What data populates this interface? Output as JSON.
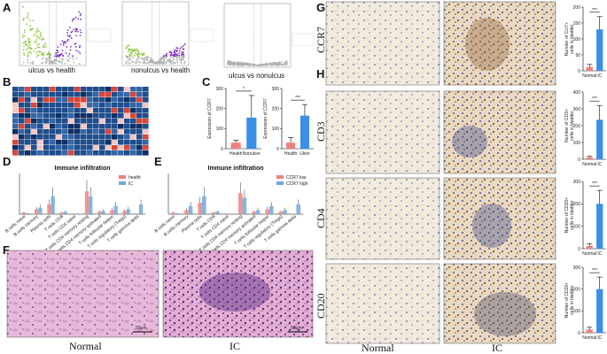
{
  "panels": {
    "A": "A",
    "B": "B",
    "C": "C",
    "D": "D",
    "E": "E",
    "F": "F",
    "G": "G",
    "H": "H"
  },
  "volcano": {
    "captions": [
      "ulcus vs health",
      "nonulcus vs health",
      "ulcus vs nonulcus"
    ],
    "colors": {
      "up": "#7b2fbe",
      "down": "#8cc63f",
      "ns": "#b0b0b0"
    }
  },
  "stains": {
    "row_labels": [
      "CCR7",
      "CD3",
      "CD4",
      "CD20"
    ],
    "col_labels": [
      "Normal",
      "IC"
    ],
    "scale_bar": "50μm"
  },
  "he": {
    "left": "Normal",
    "right": "IC",
    "scale_bar": "50μm"
  },
  "sig": {
    "star1": "*",
    "star3": "***"
  },
  "chart_data": [
    {
      "id": "C1",
      "type": "bar",
      "categories": [
        "Health",
        "Nonulcer"
      ],
      "values": [
        30,
        155
      ],
      "errors": [
        12,
        110
      ],
      "ylabel": "Expression of CCR7",
      "ylim": [
        0,
        300
      ],
      "yticks": [
        0,
        100,
        200,
        300
      ],
      "colors": [
        "#f08080",
        "#3a8fe6"
      ],
      "sig": "*"
    },
    {
      "id": "C2",
      "type": "bar",
      "categories": [
        "Health",
        "Ulcer"
      ],
      "values": [
        30,
        165
      ],
      "errors": [
        25,
        55
      ],
      "ylabel": "Expression of CCR7",
      "ylim": [
        0,
        300
      ],
      "yticks": [
        0,
        100,
        200,
        300
      ],
      "colors": [
        "#f08080",
        "#3a8fe6"
      ],
      "sig": "***"
    },
    {
      "id": "G",
      "type": "bar",
      "categories": [
        "Normal",
        "IC"
      ],
      "values": [
        12,
        130
      ],
      "errors": [
        8,
        40
      ],
      "ylabel": "Number of Ccr7+ cells in bladder",
      "ylim": [
        0,
        200
      ],
      "yticks": [
        0,
        50,
        100,
        150,
        200
      ],
      "colors": [
        "#f08080",
        "#3a8fe6"
      ],
      "sig": "***"
    },
    {
      "id": "H1",
      "type": "bar",
      "categories": [
        "Normal",
        "IC"
      ],
      "values": [
        12,
        235
      ],
      "errors": [
        8,
        85
      ],
      "ylabel": "Number of CD3+ cells in bladder",
      "ylim": [
        0,
        400
      ],
      "yticks": [
        0,
        100,
        200,
        300,
        400
      ],
      "colors": [
        "#f08080",
        "#3a8fe6"
      ],
      "sig": "***"
    },
    {
      "id": "H2",
      "type": "bar",
      "categories": [
        "Normal",
        "IC"
      ],
      "values": [
        12,
        200
      ],
      "errors": [
        10,
        60
      ],
      "ylabel": "Number of CD20+ cells in bladder",
      "ylim": [
        0,
        300
      ],
      "yticks": [
        0,
        100,
        200,
        300
      ],
      "colors": [
        "#f08080",
        "#3a8fe6"
      ],
      "sig": "***"
    },
    {
      "id": "H3",
      "type": "bar",
      "categories": [
        "Normal",
        "IC"
      ],
      "values": [
        15,
        200
      ],
      "errors": [
        10,
        55
      ],
      "ylabel": "Number of CD20+ cells in bladder",
      "ylim": [
        0,
        300
      ],
      "yticks": [
        0,
        100,
        200,
        300
      ],
      "colors": [
        "#f08080",
        "#3a8fe6"
      ],
      "sig": "***"
    },
    {
      "id": "D",
      "type": "bar",
      "title": "Immune infiltration",
      "categories": [
        "B cells naive",
        "B cells memory",
        "Plasma cells",
        "T cells CD8",
        "T cells CD4 naive",
        "T cells CD4 memory resting",
        "T cells CD4 memory activated",
        "T cells follicular helper",
        "T cells regulatory (Tregs)",
        "T cells gamma delta"
      ],
      "series": [
        {
          "name": "health",
          "color": "#f08080",
          "values": [
            0.02,
            0.06,
            0.12,
            0.02,
            0.0,
            0.28,
            0.03,
            0.05,
            0.04,
            0.0
          ]
        },
        {
          "name": "IC",
          "color": "#6fa8dc",
          "values": [
            0.01,
            0.08,
            0.22,
            0.03,
            0.0,
            0.22,
            0.04,
            0.1,
            0.06,
            0.12
          ]
        }
      ],
      "ylim": [
        0,
        0.5
      ]
    },
    {
      "id": "E",
      "type": "bar",
      "title": "Immune infiltration",
      "categories": [
        "B cells naive",
        "B cells memory",
        "Plasma cells",
        "T cells CD8",
        "T cells CD4 naive",
        "T cells CD4 memory resting",
        "T cells CD4 memory activated",
        "T cells follicular helper",
        "T cells regulatory (Tregs)",
        "T cells gamma delta"
      ],
      "series": [
        {
          "name": "CCR7 low",
          "color": "#f08080",
          "values": [
            0.02,
            0.05,
            0.14,
            0.02,
            0.0,
            0.26,
            0.03,
            0.06,
            0.03,
            0.0
          ]
        },
        {
          "name": "CCR7 high",
          "color": "#6fa8dc",
          "values": [
            0.01,
            0.1,
            0.22,
            0.03,
            0.0,
            0.2,
            0.05,
            0.1,
            0.05,
            0.12
          ]
        }
      ],
      "ylim": [
        0,
        0.5
      ]
    }
  ]
}
